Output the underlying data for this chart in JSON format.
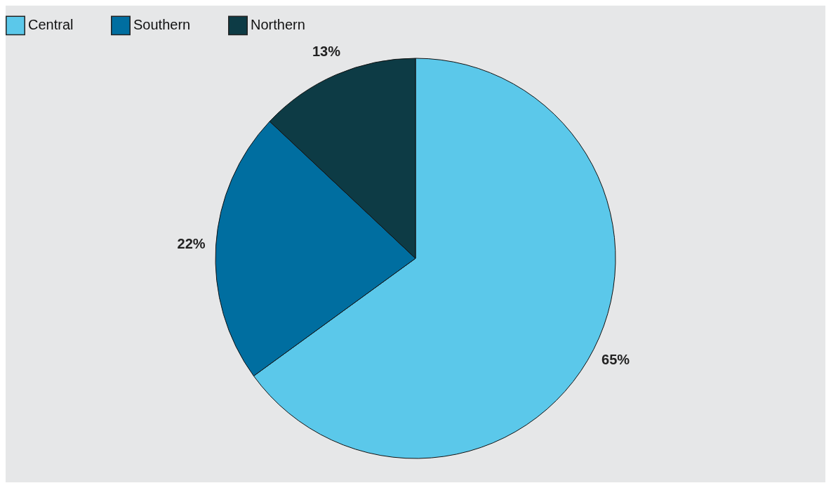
{
  "chart_data": {
    "type": "pie",
    "categories": [
      "Central",
      "Southern",
      "Northern"
    ],
    "values": [
      65,
      22,
      13
    ],
    "colors": [
      "#5bc8ea",
      "#006ea0",
      "#0d3b45"
    ],
    "value_labels": [
      "65%",
      "22%",
      "13%"
    ],
    "legend": "top"
  }
}
